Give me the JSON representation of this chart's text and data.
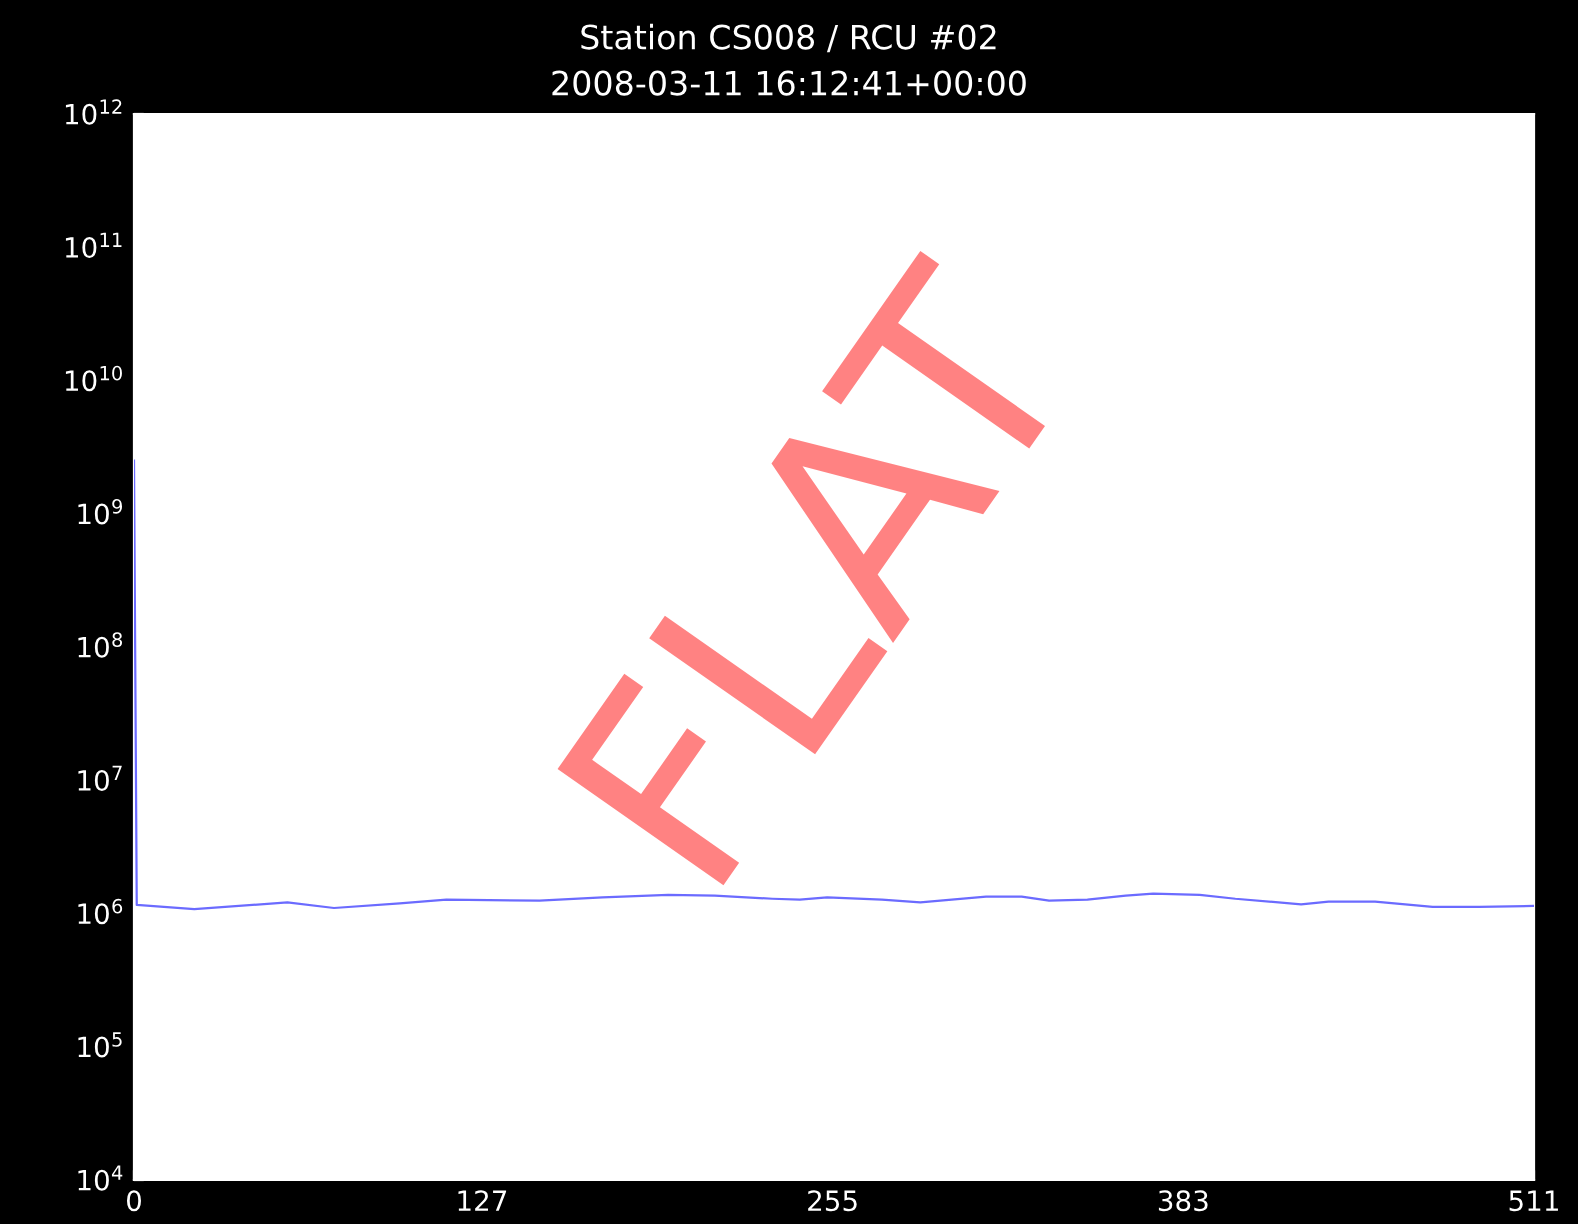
{
  "chart_data": {
    "type": "line",
    "title": "Station CS008 / RCU #02",
    "subtitle": "2008-03-11 16:12:41+00:00",
    "x": [
      0,
      1,
      22,
      56,
      73,
      97,
      114,
      148,
      171,
      195,
      212,
      233,
      243,
      253,
      273,
      287,
      311,
      324,
      334,
      348,
      362,
      372,
      389,
      402,
      426,
      436,
      453,
      474,
      491,
      511
    ],
    "series": [
      {
        "color": "#6b6bff",
        "values": [
          2500000000,
          1160000,
          1080000,
          1210000,
          1100000,
          1190000,
          1270000,
          1250000,
          1320000,
          1380000,
          1360000,
          1290000,
          1270000,
          1320000,
          1270000,
          1210000,
          1340000,
          1340000,
          1250000,
          1270000,
          1360000,
          1410000,
          1380000,
          1290000,
          1170000,
          1230000,
          1230000,
          1120000,
          1120000,
          1140000
        ]
      }
    ],
    "log": "y",
    "xlim": [
      0,
      511
    ],
    "xticks": [
      0,
      127,
      255,
      383,
      511
    ],
    "ylim": [
      10000,
      1000000000000
    ],
    "yticks": [
      {
        "value": 10000,
        "label": "10$^{4}$"
      },
      {
        "value": 100000,
        "label": "10$^{5}$"
      },
      {
        "value": 1000000,
        "label": "10$^{6}$"
      },
      {
        "value": 10000000,
        "label": "10$^{7}$"
      },
      {
        "value": 100000000,
        "label": "10$^{8}$"
      },
      {
        "value": 1000000000,
        "label": "10$^{9}$"
      },
      {
        "value": 10000000000,
        "label": "10$^{10}$"
      },
      {
        "value": 100000000000,
        "label": "10$^{11}$"
      },
      {
        "value": 1000000000000,
        "label": "10$^{12}$"
      }
    ],
    "grid": false,
    "legend": false,
    "marker": "none",
    "line_style": "solid",
    "annotations": [
      "FLAT"
    ]
  }
}
